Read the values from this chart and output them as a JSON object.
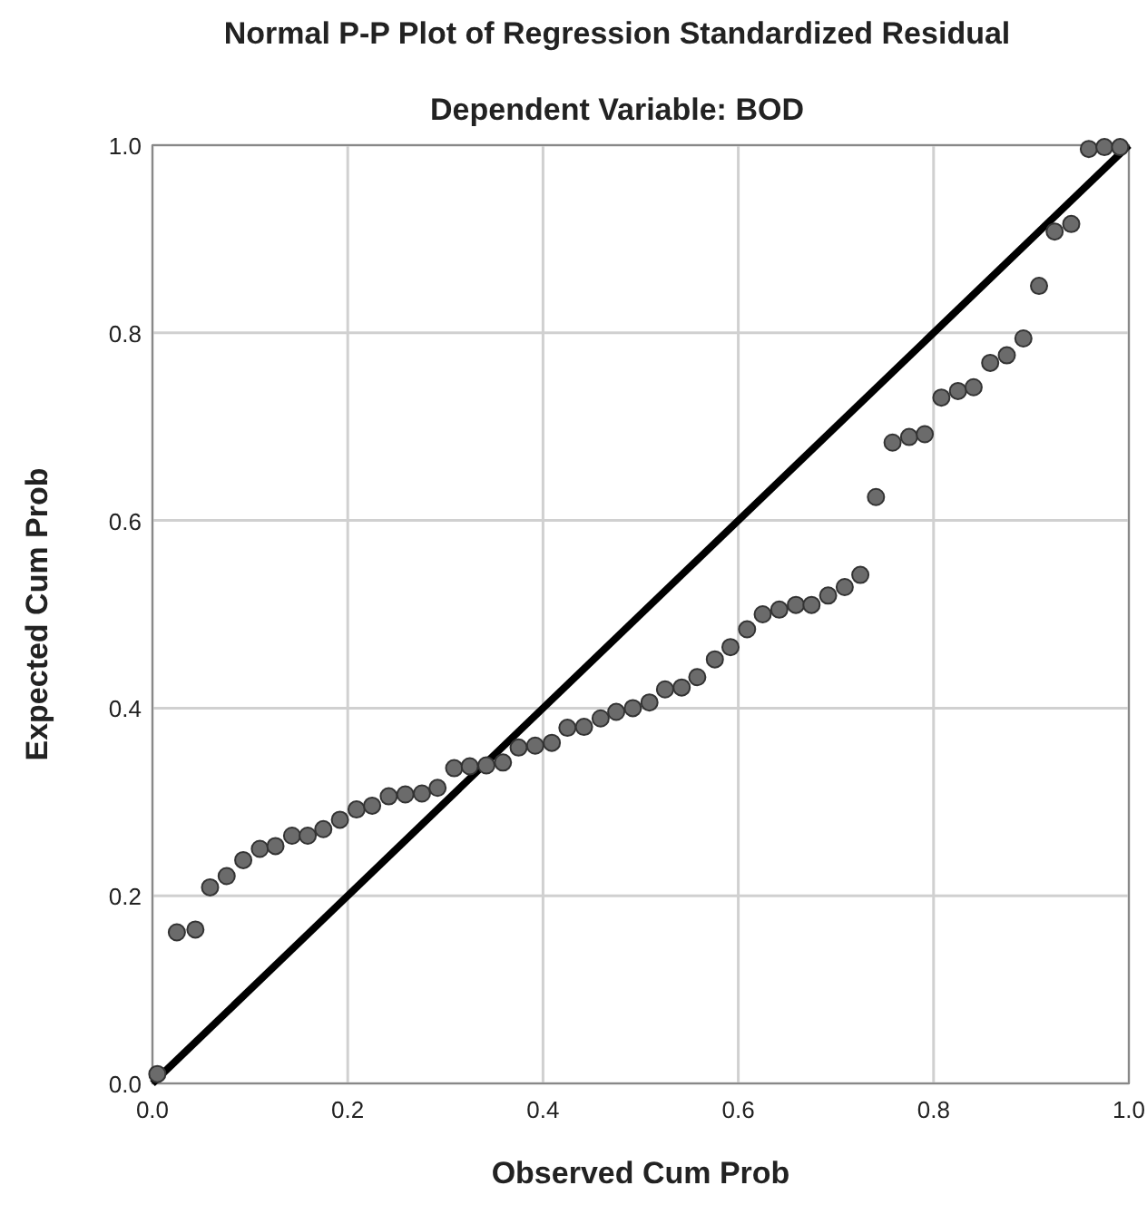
{
  "chart_data": {
    "type": "scatter",
    "title": "Normal P-P Plot of Regression Standardized Residual",
    "subtitle": "Dependent Variable: BOD",
    "xlabel": "Observed Cum Prob",
    "ylabel": "Expected Cum Prob",
    "xlim": [
      0,
      1
    ],
    "ylim": [
      0,
      1
    ],
    "xticks": [
      {
        "value": 0,
        "label": "0.0"
      },
      0.2,
      0.4,
      0.6,
      0.8,
      {
        "value": 1,
        "label": "1.0"
      }
    ],
    "yticks": [
      {
        "value": 0,
        "label": "0.0"
      },
      0.2,
      0.4,
      0.6,
      0.8,
      {
        "value": 1,
        "label": "1.0"
      }
    ],
    "grid": true,
    "marker": "circle",
    "series": [
      {
        "color": "#6b6b6b",
        "x": [
          0.005,
          0.025,
          0.044,
          0.059,
          0.076,
          0.093,
          0.11,
          0.126,
          0.143,
          0.159,
          0.175,
          0.192,
          0.209,
          0.225,
          0.242,
          0.259,
          0.276,
          0.292,
          0.309,
          0.325,
          0.342,
          0.359,
          0.375,
          0.392,
          0.409,
          0.425,
          0.442,
          0.459,
          0.475,
          0.492,
          0.509,
          0.525,
          0.542,
          0.558,
          0.576,
          0.592,
          0.609,
          0.625,
          0.642,
          0.659,
          0.675,
          0.692,
          0.709,
          0.725,
          0.741,
          0.758,
          0.775,
          0.791,
          0.808,
          0.825,
          0.841,
          0.858,
          0.875,
          0.892,
          0.908,
          0.924,
          0.941,
          0.959,
          0.975,
          0.991
        ],
        "values": [
          0.01,
          0.161,
          0.164,
          0.209,
          0.221,
          0.238,
          0.25,
          0.253,
          0.264,
          0.264,
          0.271,
          0.281,
          0.292,
          0.296,
          0.306,
          0.308,
          0.309,
          0.315,
          0.336,
          0.338,
          0.339,
          0.342,
          0.358,
          0.36,
          0.363,
          0.379,
          0.38,
          0.389,
          0.396,
          0.4,
          0.406,
          0.42,
          0.422,
          0.433,
          0.452,
          0.465,
          0.484,
          0.5,
          0.505,
          0.51,
          0.51,
          0.52,
          0.529,
          0.542,
          0.625,
          0.683,
          0.689,
          0.692,
          0.731,
          0.738,
          0.742,
          0.768,
          0.776,
          0.794,
          0.85,
          0.908,
          0.916,
          0.996,
          0.998,
          0.998
        ]
      },
      {
        "type": "line",
        "color": "#000000",
        "x": [
          0,
          1
        ],
        "values": [
          0,
          1
        ],
        "line_style": "solid",
        "marker": "none"
      }
    ]
  }
}
